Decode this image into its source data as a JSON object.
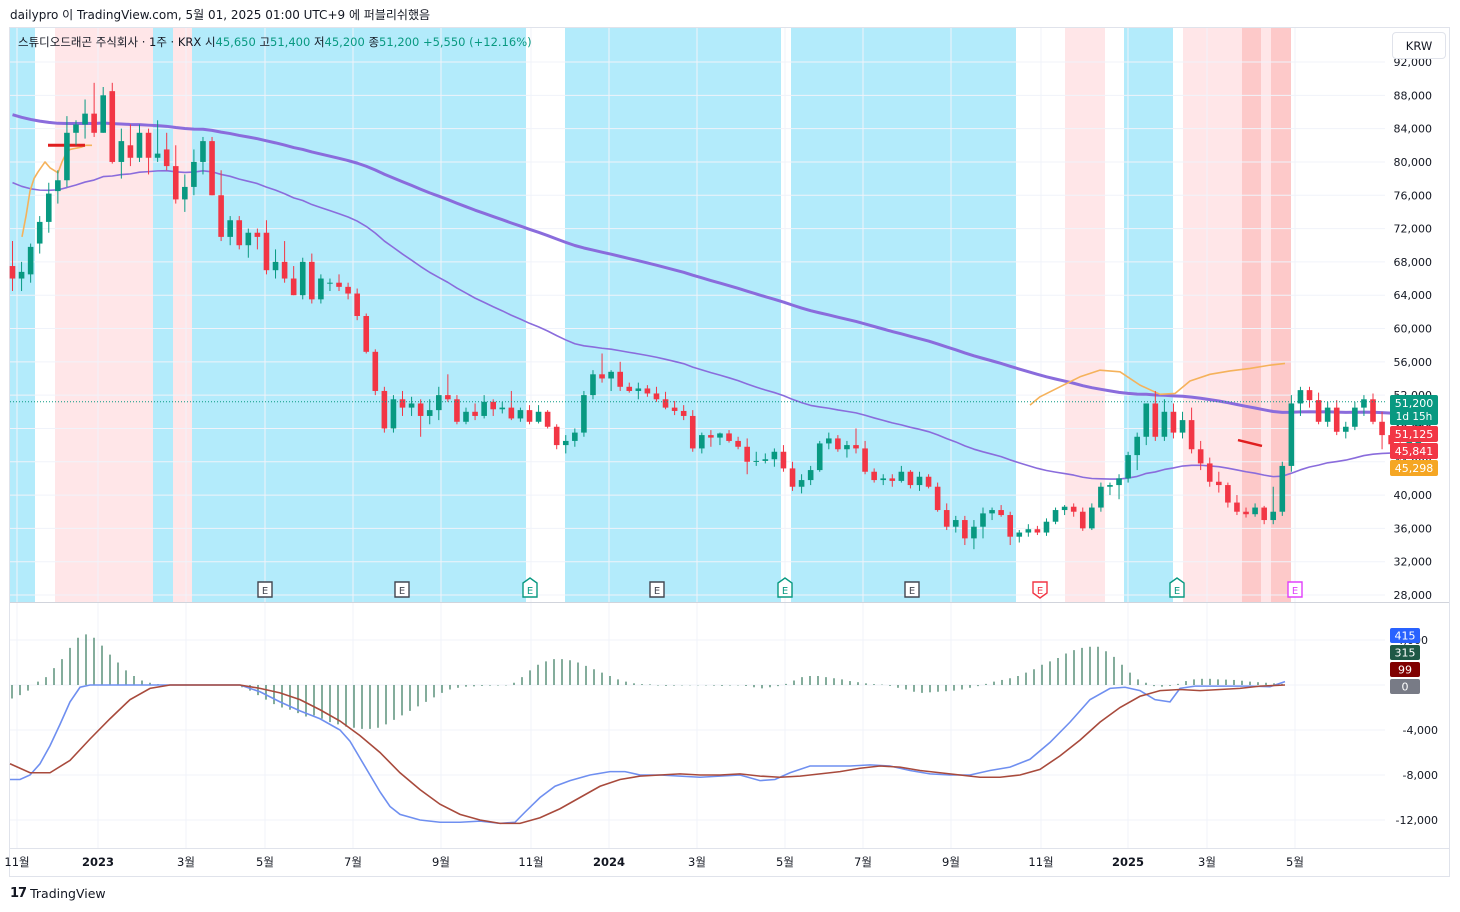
{
  "caption": "dailypro 이 TradingView.com, 5월 01, 2025 01:00 UTC+9 에 퍼블리쉬했음",
  "legend": {
    "symbol": "스튜디오드래곤 주식회사 · 1주 · KRX",
    "open_label": "시",
    "open": "45,650",
    "high_label": "고",
    "high": "51,400",
    "low_label": "저",
    "low": "45,200",
    "close_label": "종",
    "close": "51,200",
    "change": "+5,550 (+12.16%)"
  },
  "currency": "KRW",
  "footer": {
    "brand": "TradingView",
    "logo": "17"
  },
  "colors": {
    "up": "#089981",
    "down": "#f23645",
    "ma_fast": "#f5b25b",
    "ma_mid": "#8a6cdc",
    "ma_slow": "#8a6cdc",
    "band_blue": "#b3ebfb",
    "band_pink": "#ffe6e8",
    "band_red": "#fdc9c9",
    "macd_line": "#6f8ff0",
    "signal_line": "#a84a3c",
    "hist": "#4f8a72"
  },
  "chart_data": [
    {
      "type": "candlestick",
      "name": "price",
      "ylim": [
        28000,
        92000
      ],
      "y_ticks": [
        "92,000",
        "88,000",
        "84,000",
        "80,000",
        "76,000",
        "72,000",
        "68,000",
        "64,000",
        "60,000",
        "56,000",
        "52,000",
        "48,000",
        "44,000",
        "40,000",
        "36,000",
        "32,000",
        "28,000"
      ],
      "x_ticks": [
        "11월",
        "2023",
        "3월",
        "5월",
        "7월",
        "9월",
        "11월",
        "2024",
        "3월",
        "5월",
        "7월",
        "9월",
        "11월",
        "2025",
        "3월",
        "5월"
      ],
      "candles": [
        [
          67500,
          70500,
          64500,
          66000
        ],
        [
          66000,
          68000,
          64500,
          66800
        ],
        [
          66500,
          70200,
          65500,
          69800
        ],
        [
          70200,
          73500,
          69000,
          72800
        ],
        [
          72800,
          77500,
          71500,
          76200
        ],
        [
          76500,
          79000,
          75000,
          77800
        ],
        [
          77800,
          85500,
          77000,
          83500
        ],
        [
          83500,
          85000,
          82000,
          84500
        ],
        [
          84500,
          87500,
          82800,
          85800
        ],
        [
          85800,
          89500,
          83000,
          83500
        ],
        [
          83500,
          89000,
          83500,
          88000
        ],
        [
          88500,
          89500,
          79800,
          80000
        ],
        [
          80000,
          84000,
          78000,
          82500
        ],
        [
          82000,
          84500,
          79500,
          80500
        ],
        [
          80500,
          84500,
          80000,
          83500
        ],
        [
          83500,
          84000,
          78500,
          80500
        ],
        [
          80500,
          85000,
          80000,
          81000
        ],
        [
          81500,
          83500,
          79000,
          79500
        ],
        [
          79500,
          82000,
          75000,
          75500
        ],
        [
          75500,
          78500,
          74000,
          77000
        ],
        [
          77000,
          81500,
          76000,
          80000
        ],
        [
          80000,
          83000,
          78500,
          82500
        ],
        [
          82500,
          83000,
          76000,
          76000
        ],
        [
          76000,
          79000,
          70500,
          71000
        ],
        [
          71000,
          73500,
          70000,
          73000
        ],
        [
          73000,
          73500,
          69500,
          70000
        ],
        [
          70000,
          72000,
          68500,
          71500
        ],
        [
          71500,
          72000,
          69500,
          71000
        ],
        [
          71500,
          73000,
          66500,
          67000
        ],
        [
          67000,
          69500,
          66000,
          68000
        ],
        [
          68000,
          70500,
          65500,
          66000
        ],
        [
          66000,
          67500,
          64000,
          64000
        ],
        [
          64000,
          68500,
          63500,
          68000
        ],
        [
          68000,
          69000,
          63000,
          63500
        ],
        [
          63500,
          66500,
          63000,
          66000
        ],
        [
          65500,
          66000,
          64500,
          65500
        ],
        [
          65500,
          66500,
          64500,
          65000
        ],
        [
          65000,
          65500,
          63500,
          64200
        ],
        [
          64200,
          64800,
          61000,
          61500
        ],
        [
          61500,
          61800,
          57000,
          57200
        ],
        [
          57200,
          57500,
          52000,
          52500
        ],
        [
          52500,
          53000,
          47500,
          48000
        ],
        [
          48000,
          52000,
          47500,
          51500
        ],
        [
          51500,
          52500,
          49500,
          50500
        ],
        [
          50500,
          51800,
          49500,
          51000
        ],
        [
          51000,
          51500,
          47000,
          49500
        ],
        [
          49500,
          51500,
          48500,
          50200
        ],
        [
          50200,
          53000,
          49000,
          52000
        ],
        [
          52000,
          54500,
          51200,
          51500
        ],
        [
          51500,
          52000,
          48500,
          48800
        ],
        [
          48800,
          50500,
          48500,
          50000
        ],
        [
          50000,
          51000,
          49000,
          49500
        ],
        [
          49500,
          52000,
          49200,
          51200
        ],
        [
          51200,
          51500,
          49500,
          50300
        ],
        [
          50300,
          51200,
          49800,
          50500
        ],
        [
          50500,
          52500,
          49000,
          49200
        ],
        [
          49200,
          50500,
          48800,
          50200
        ],
        [
          50200,
          50800,
          48500,
          48800
        ],
        [
          48800,
          50800,
          48600,
          50000
        ],
        [
          50000,
          50200,
          48000,
          48200
        ],
        [
          48200,
          48500,
          45500,
          46000
        ],
        [
          46000,
          47200,
          45000,
          46500
        ],
        [
          46500,
          48000,
          45800,
          47500
        ],
        [
          47500,
          52500,
          47000,
          52000
        ],
        [
          52000,
          55000,
          51500,
          54500
        ],
        [
          54500,
          57000,
          53500,
          54000
        ],
        [
          54000,
          55000,
          52500,
          54800
        ],
        [
          54800,
          56000,
          52500,
          53000
        ],
        [
          53000,
          53500,
          52300,
          52500
        ],
        [
          52500,
          53500,
          51500,
          52800
        ],
        [
          52800,
          53200,
          51800,
          52200
        ],
        [
          52200,
          53000,
          51200,
          51500
        ],
        [
          51500,
          52400,
          50300,
          50500
        ],
        [
          50500,
          51300,
          49600,
          50100
        ],
        [
          50100,
          50800,
          49000,
          49500
        ],
        [
          49500,
          50200,
          45200,
          45600
        ],
        [
          45600,
          47500,
          45000,
          47200
        ],
        [
          47200,
          47800,
          45800,
          46900
        ],
        [
          46900,
          47500,
          46000,
          47400
        ],
        [
          47400,
          47800,
          46300,
          46500
        ],
        [
          46500,
          47000,
          45500,
          45800
        ],
        [
          45800,
          46800,
          42500,
          44000
        ],
        [
          44000,
          45200,
          43500,
          44100
        ],
        [
          44100,
          45000,
          43800,
          44300
        ],
        [
          44300,
          45600,
          43400,
          45200
        ],
        [
          45200,
          46000,
          42800,
          43200
        ],
        [
          43200,
          44000,
          40500,
          41000
        ],
        [
          41000,
          42500,
          40200,
          41800
        ],
        [
          41800,
          43500,
          41200,
          43000
        ],
        [
          43000,
          46500,
          42800,
          46200
        ],
        [
          46200,
          47500,
          45500,
          46800
        ],
        [
          46800,
          47200,
          45200,
          45500
        ],
        [
          45500,
          46500,
          44500,
          46000
        ],
        [
          46000,
          48000,
          45000,
          45600
        ],
        [
          45600,
          46500,
          42500,
          42800
        ],
        [
          42800,
          43200,
          41500,
          41800
        ],
        [
          41800,
          42500,
          41200,
          42000
        ],
        [
          42000,
          42500,
          41000,
          41700
        ],
        [
          41700,
          43500,
          41500,
          42800
        ],
        [
          42800,
          43000,
          40800,
          41200
        ],
        [
          41200,
          42800,
          40500,
          42200
        ],
        [
          42200,
          42500,
          40800,
          41000
        ],
        [
          41000,
          41500,
          38000,
          38200
        ],
        [
          38200,
          39000,
          35800,
          36200
        ],
        [
          36200,
          37500,
          35500,
          37000
        ],
        [
          37000,
          37500,
          34000,
          34800
        ],
        [
          34800,
          37000,
          33500,
          36200
        ],
        [
          36200,
          38500,
          34800,
          37800
        ],
        [
          37800,
          38500,
          37000,
          38200
        ],
        [
          38200,
          38800,
          37400,
          37600
        ],
        [
          37600,
          38000,
          34000,
          35000
        ],
        [
          35000,
          35800,
          34300,
          35500
        ],
        [
          35500,
          36500,
          35000,
          35900
        ],
        [
          35900,
          36300,
          35200,
          35500
        ],
        [
          35500,
          37200,
          35100,
          36800
        ],
        [
          36800,
          38500,
          36500,
          38200
        ],
        [
          38200,
          38800,
          37600,
          38600
        ],
        [
          38600,
          39000,
          37400,
          38000
        ],
        [
          38000,
          38500,
          35700,
          36000
        ],
        [
          36000,
          39000,
          35800,
          38500
        ],
        [
          38500,
          41500,
          38000,
          41000
        ],
        [
          41000,
          41500,
          40000,
          41200
        ],
        [
          41200,
          42500,
          39500,
          42000
        ],
        [
          42000,
          45200,
          41500,
          44800
        ],
        [
          44800,
          47500,
          43000,
          47000
        ],
        [
          47000,
          51000,
          46000,
          51000
        ],
        [
          51000,
          52500,
          46500,
          47000
        ],
        [
          47000,
          51500,
          46500,
          50000
        ],
        [
          50000,
          51000,
          46800,
          47500
        ],
        [
          47500,
          50000,
          46800,
          49000
        ],
        [
          49000,
          50500,
          45000,
          45500
        ],
        [
          45500,
          46500,
          43000,
          43800
        ],
        [
          43800,
          44500,
          41000,
          41600
        ],
        [
          41600,
          42800,
          40300,
          41200
        ],
        [
          41200,
          41500,
          38500,
          39100
        ],
        [
          39100,
          40000,
          37600,
          38000
        ],
        [
          38000,
          38500,
          37300,
          37700
        ],
        [
          37700,
          39000,
          37400,
          38500
        ],
        [
          38500,
          38700,
          36500,
          37000
        ],
        [
          37000,
          41000,
          36500,
          38000
        ],
        [
          38000,
          44000,
          37500,
          43500
        ],
        [
          43500,
          52000,
          42800,
          51000
        ],
        [
          51000,
          53000,
          49500,
          52600
        ],
        [
          52600,
          53000,
          50500,
          51400
        ],
        [
          51400,
          52300,
          48500,
          48800
        ],
        [
          48800,
          51200,
          48200,
          50500
        ],
        [
          50500,
          51400,
          47200,
          47600
        ],
        [
          47600,
          48800,
          46800,
          48200
        ],
        [
          48200,
          51200,
          47800,
          50500
        ],
        [
          50500,
          52000,
          49500,
          51500
        ],
        [
          51500,
          52200,
          48500,
          48800
        ],
        [
          48800,
          50000,
          45500,
          47200
        ],
        [
          47200,
          48200,
          45000,
          46100
        ],
        [
          46100,
          47500,
          43800,
          45500
        ],
        [
          45500,
          46500,
          44600,
          46500
        ],
        [
          45650,
          51400,
          45200,
          51200
        ]
      ],
      "ma_fast": [
        [
          22,
          71000
        ],
        [
          26,
          73500
        ],
        [
          30,
          76500
        ],
        [
          34,
          78000
        ],
        [
          38,
          78800
        ],
        [
          45,
          80000
        ],
        [
          50,
          79300
        ],
        [
          54,
          79000
        ],
        [
          58,
          78700
        ],
        [
          62,
          80000
        ],
        [
          66,
          81000
        ],
        [
          70,
          81500
        ],
        [
          74,
          81600
        ],
        [
          78,
          81700
        ],
        [
          82,
          81800
        ],
        [
          86,
          82000
        ],
        [
          88,
          82000
        ],
        [
          92,
          82000
        ]
      ],
      "ma_fast_tail": [
        [
          1030,
          50800
        ],
        [
          1040,
          51800
        ],
        [
          1060,
          53000
        ],
        [
          1080,
          54200
        ],
        [
          1100,
          55000
        ],
        [
          1120,
          54800
        ],
        [
          1140,
          53200
        ],
        [
          1160,
          52100
        ],
        [
          1175,
          52200
        ],
        [
          1190,
          53700
        ],
        [
          1210,
          54500
        ],
        [
          1230,
          54900
        ],
        [
          1250,
          55200
        ],
        [
          1270,
          55600
        ],
        [
          1285,
          55800
        ]
      ],
      "legend_values": [
        {
          "value": "51,200",
          "sub": "1d 15h",
          "color": "#089981"
        },
        {
          "value": "51,125",
          "color": "#f23645"
        },
        {
          "value": "45,841",
          "color": "#f23645"
        },
        {
          "value": "45,298",
          "color": "#f5a623"
        }
      ],
      "earnings_labels": [
        "E",
        "E",
        "E",
        "E",
        "E",
        "E",
        "E",
        "E",
        "E"
      ]
    },
    {
      "type": "macd",
      "name": "macd",
      "ylim": [
        -13500,
        4500
      ],
      "y_ticks": [
        "4,000",
        "0",
        "-4,000",
        "-8,000",
        "-12,000"
      ],
      "legend_values": [
        {
          "value": "415",
          "color": "#2962ff"
        },
        {
          "value": "315",
          "color": "#1e5846"
        },
        {
          "value": "99",
          "color": "#800000"
        },
        {
          "value": "0",
          "color": "#787b86"
        }
      ]
    }
  ]
}
